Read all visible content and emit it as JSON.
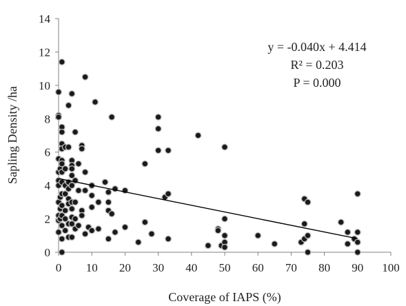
{
  "chart_data": {
    "type": "scatter",
    "xlabel": "Coverage of IAPS (%)",
    "ylabel": "Sapling Density /ha",
    "xlim": [
      0,
      100
    ],
    "ylim": [
      0,
      14
    ],
    "xticks": [
      "0",
      "10",
      "20",
      "30",
      "40",
      "50",
      "60",
      "70",
      "80",
      "90",
      "100"
    ],
    "yticks": [
      "0",
      "2",
      "4",
      "6",
      "8",
      "10",
      "12",
      "14"
    ],
    "grid": false,
    "legend": "none",
    "marker_color": "#1a1a1a",
    "marker_edge_color": "#bdbdbd",
    "annotation": [
      "y = -0.040x + 4.414",
      "R² = 0.203",
      "P = 0.000"
    ],
    "trendline": {
      "slope": -0.04,
      "intercept": 4.414,
      "x_range": [
        0,
        90
      ]
    },
    "points": [
      [
        0,
        9.6
      ],
      [
        0,
        8.2
      ],
      [
        0,
        8.1
      ],
      [
        0,
        5.6
      ],
      [
        0,
        4.8
      ],
      [
        0,
        4.3
      ],
      [
        0,
        4.0
      ],
      [
        0,
        3.0
      ],
      [
        0,
        2.2
      ],
      [
        0,
        1.9
      ],
      [
        0,
        1.2
      ],
      [
        0.5,
        5.0
      ],
      [
        0.5,
        3.3
      ],
      [
        0.5,
        2.6
      ],
      [
        0.5,
        2.0
      ],
      [
        1,
        11.4
      ],
      [
        1,
        7.5
      ],
      [
        1,
        7.2
      ],
      [
        1,
        6.5
      ],
      [
        1,
        6.2
      ],
      [
        1,
        5.5
      ],
      [
        1,
        5.3
      ],
      [
        1,
        4.8
      ],
      [
        1,
        4.2
      ],
      [
        1,
        3.5
      ],
      [
        1,
        2.8
      ],
      [
        1,
        2.2
      ],
      [
        1,
        1.6
      ],
      [
        1,
        0.8
      ],
      [
        1,
        0.0
      ],
      [
        2,
        6.3
      ],
      [
        2,
        5.0
      ],
      [
        2,
        4.0
      ],
      [
        2,
        3.5
      ],
      [
        2,
        2.5
      ],
      [
        2,
        2.0
      ],
      [
        2,
        1.3
      ],
      [
        3,
        8.8
      ],
      [
        3,
        6.3
      ],
      [
        3,
        4.2
      ],
      [
        3,
        3.8
      ],
      [
        3,
        3.2
      ],
      [
        3,
        2.9
      ],
      [
        3,
        1.7
      ],
      [
        3,
        0.9
      ],
      [
        4,
        9.5
      ],
      [
        4,
        5.5
      ],
      [
        4,
        5.2
      ],
      [
        4,
        5.0
      ],
      [
        4,
        4.6
      ],
      [
        4,
        4.0
      ],
      [
        4,
        3.0
      ],
      [
        4,
        2.6
      ],
      [
        4,
        2.1
      ],
      [
        4,
        1.7
      ],
      [
        4,
        0.9
      ],
      [
        5,
        7.2
      ],
      [
        5,
        4.3
      ],
      [
        5,
        3.0
      ],
      [
        5,
        2.0
      ],
      [
        5,
        1.4
      ],
      [
        6,
        5.3
      ],
      [
        6,
        3.7
      ],
      [
        6,
        1.6
      ],
      [
        7,
        6.4
      ],
      [
        7,
        6.2
      ],
      [
        7,
        2.5
      ],
      [
        7,
        2.2
      ],
      [
        8,
        10.5
      ],
      [
        8,
        4.8
      ],
      [
        8,
        3.7
      ],
      [
        8,
        1.1
      ],
      [
        9,
        1.5
      ],
      [
        10,
        4.0
      ],
      [
        10,
        3.4
      ],
      [
        10,
        2.7
      ],
      [
        10,
        1.3
      ],
      [
        11,
        9.0
      ],
      [
        12,
        3.0
      ],
      [
        12,
        1.4
      ],
      [
        14,
        4.2
      ],
      [
        15,
        3.6
      ],
      [
        15,
        3.0
      ],
      [
        15,
        2.5
      ],
      [
        15,
        0.8
      ],
      [
        16,
        8.1
      ],
      [
        16,
        2.3
      ],
      [
        17,
        3.8
      ],
      [
        17,
        1.2
      ],
      [
        20,
        3.7
      ],
      [
        20,
        1.5
      ],
      [
        24,
        0.6
      ],
      [
        26,
        5.3
      ],
      [
        26,
        1.8
      ],
      [
        28,
        1.1
      ],
      [
        30,
        8.1
      ],
      [
        30,
        7.4
      ],
      [
        30,
        6.1
      ],
      [
        32,
        3.3
      ],
      [
        33,
        6.1
      ],
      [
        33,
        3.5
      ],
      [
        33,
        0.8
      ],
      [
        42,
        7.0
      ],
      [
        45,
        0.4
      ],
      [
        48,
        1.4
      ],
      [
        48,
        1.3
      ],
      [
        49,
        0.4
      ],
      [
        50,
        6.3
      ],
      [
        50,
        2.0
      ],
      [
        50,
        1.0
      ],
      [
        50,
        0.6
      ],
      [
        50,
        0.3
      ],
      [
        60,
        1.0
      ],
      [
        65,
        0.5
      ],
      [
        73,
        0.6
      ],
      [
        74,
        3.2
      ],
      [
        74,
        1.7
      ],
      [
        74,
        0.8
      ],
      [
        75,
        3.0
      ],
      [
        75,
        1.0
      ],
      [
        75,
        0.0
      ],
      [
        85,
        1.8
      ],
      [
        87,
        1.2
      ],
      [
        87,
        0.5
      ],
      [
        89,
        0.8
      ],
      [
        90,
        3.5
      ],
      [
        90,
        1.2
      ],
      [
        90,
        0.6
      ],
      [
        90,
        0.0
      ]
    ]
  }
}
